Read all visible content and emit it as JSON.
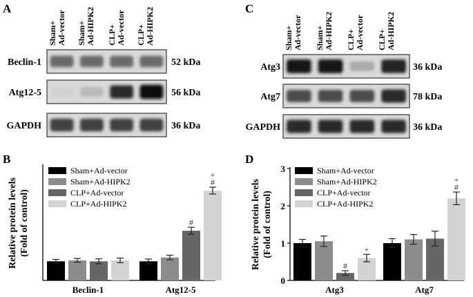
{
  "panels": {
    "A": {
      "letter": "A",
      "lanes": [
        [
          "Sham+",
          "Ad-vector"
        ],
        [
          "Sham+",
          "Ad-HIPK2"
        ],
        [
          "CLP+",
          "Ad-vector"
        ],
        [
          "CLP+",
          "Ad-HIPK2"
        ]
      ],
      "blots": [
        {
          "protein": "Beclin-1",
          "kda": "52 kDa",
          "intensity": [
            0.55,
            0.55,
            0.55,
            0.55
          ]
        },
        {
          "protein": "Atg12-5",
          "kda": "56 kDa",
          "intensity": [
            0.08,
            0.18,
            0.85,
            1.0
          ]
        },
        {
          "protein": "GAPDH",
          "kda": "36 kDa",
          "intensity": [
            0.75,
            0.75,
            0.75,
            0.75
          ]
        }
      ]
    },
    "C": {
      "letter": "C",
      "lanes": [
        [
          "Sham+",
          "Ad-vector"
        ],
        [
          "Sham+",
          "Ad-HIPK2"
        ],
        [
          "CLP+",
          "Ad-vector"
        ],
        [
          "CLP+",
          "Ad-HIPK2"
        ]
      ],
      "blots": [
        {
          "protein": "Atg3",
          "kda": "36 kDa",
          "intensity": [
            0.95,
            0.95,
            0.25,
            0.9
          ]
        },
        {
          "protein": "Atg7",
          "kda": "78 kDa",
          "intensity": [
            0.7,
            0.7,
            0.7,
            0.85
          ]
        },
        {
          "protein": "GAPDH",
          "kda": "36 kDa",
          "intensity": [
            0.85,
            0.85,
            0.85,
            0.85
          ]
        }
      ]
    },
    "B": {
      "letter": "B"
    },
    "D": {
      "letter": "D"
    }
  },
  "colors": {
    "Sham+Ad-vector": "#000000",
    "Sham+Ad-HIPK2": "#8c8c8c",
    "CLP+Ad-vector": "#666666",
    "CLP+Ad-HIPK2": "#d3d3d3"
  },
  "chart_data": [
    {
      "type": "bar",
      "panel": "B",
      "ylabel": "Relative protein levels",
      "ylabel2": "(Fold of control)",
      "categories": [
        "Beclin-1",
        "Atg12-5"
      ],
      "ylim": [
        0,
        6
      ],
      "yticks": [],
      "legend_position": "top-left",
      "series": [
        {
          "name": "Sham+Ad-vector",
          "values": [
            1.0,
            1.0
          ],
          "errors": [
            0.1,
            0.12
          ],
          "marks": [
            "",
            ""
          ]
        },
        {
          "name": "Sham+Ad-HIPK2",
          "values": [
            1.05,
            1.2
          ],
          "errors": [
            0.1,
            0.12
          ],
          "marks": [
            "",
            ""
          ]
        },
        {
          "name": "CLP+Ad-vector",
          "values": [
            1.0,
            2.6
          ],
          "errors": [
            0.13,
            0.18
          ],
          "marks": [
            "",
            "#"
          ]
        },
        {
          "name": "CLP+Ad-HIPK2",
          "values": [
            1.05,
            4.7
          ],
          "errors": [
            0.12,
            0.18
          ],
          "marks": [
            "",
            "#+"
          ]
        }
      ]
    },
    {
      "type": "bar",
      "panel": "D",
      "ylabel": "Relative protein levels",
      "ylabel2": "(Fold of control)",
      "categories": [
        "Atg3",
        "Atg7"
      ],
      "ylim": [
        0,
        3
      ],
      "yticks": [
        0,
        1,
        2,
        3
      ],
      "legend_position": "top-left",
      "series": [
        {
          "name": "Sham+Ad-vector",
          "values": [
            1.0,
            1.0
          ],
          "errors": [
            0.1,
            0.12
          ],
          "marks": [
            "",
            ""
          ]
        },
        {
          "name": "Sham+Ad-HIPK2",
          "values": [
            1.05,
            1.1
          ],
          "errors": [
            0.14,
            0.13
          ],
          "marks": [
            "",
            ""
          ]
        },
        {
          "name": "CLP+Ad-vector",
          "values": [
            0.2,
            1.12
          ],
          "errors": [
            0.06,
            0.2
          ],
          "marks": [
            "#",
            ""
          ]
        },
        {
          "name": "CLP+Ad-HIPK2",
          "values": [
            0.6,
            2.2
          ],
          "errors": [
            0.1,
            0.17
          ],
          "marks": [
            "+",
            "#+"
          ]
        }
      ]
    }
  ]
}
